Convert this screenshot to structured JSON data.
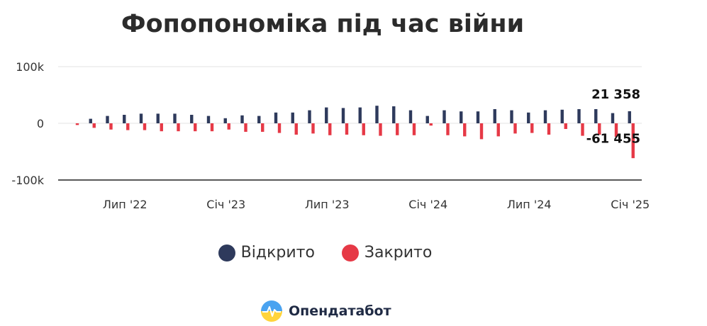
{
  "chart_data": {
    "type": "bar",
    "title": "Фопопономіка під час війни",
    "ylim": [
      -100000,
      100000
    ],
    "y_ticks": [
      {
        "value": 100000,
        "label": "100k"
      },
      {
        "value": 0,
        "label": "0"
      },
      {
        "value": -100000,
        "label": "-100k"
      }
    ],
    "x_ticks": [
      {
        "index": 3,
        "label": "Лип '22"
      },
      {
        "index": 9,
        "label": "Січ '23"
      },
      {
        "index": 15,
        "label": "Лип '23"
      },
      {
        "index": 21,
        "label": "Січ '24"
      },
      {
        "index": 27,
        "label": "Лип '24"
      },
      {
        "index": 33,
        "label": "Січ '25"
      }
    ],
    "grid": true,
    "legend_position": "bottom",
    "series": [
      {
        "name": "Відкрито",
        "color": "#2e3a5c",
        "values": [
          0,
          8000,
          13000,
          15000,
          17000,
          17000,
          17000,
          15000,
          13000,
          9000,
          14000,
          13000,
          19000,
          19000,
          23000,
          28000,
          27000,
          28000,
          31000,
          30000,
          23000,
          13000,
          23000,
          21000,
          21000,
          25000,
          23000,
          19000,
          23000,
          24000,
          25000,
          25000,
          18000,
          21358
        ]
      },
      {
        "name": "Закрито",
        "color": "#e63946",
        "values": [
          -3000,
          -8000,
          -11000,
          -12000,
          -12000,
          -14000,
          -14000,
          -14000,
          -14000,
          -11000,
          -15000,
          -15000,
          -17000,
          -20000,
          -18000,
          -21000,
          -20000,
          -21000,
          -22000,
          -21000,
          -21000,
          -4000,
          -21000,
          -23000,
          -28000,
          -23000,
          -18000,
          -17000,
          -20000,
          -10000,
          -22000,
          -20000,
          -24000,
          -61455
        ]
      }
    ],
    "annotations": [
      {
        "series": "Відкрито",
        "index": 33,
        "label": "21 358"
      },
      {
        "series": "Закрито",
        "index": 33,
        "label": "-61 455"
      }
    ]
  },
  "brand": {
    "name": "Опендатабот",
    "icon": "opendatabot-logo-icon"
  }
}
